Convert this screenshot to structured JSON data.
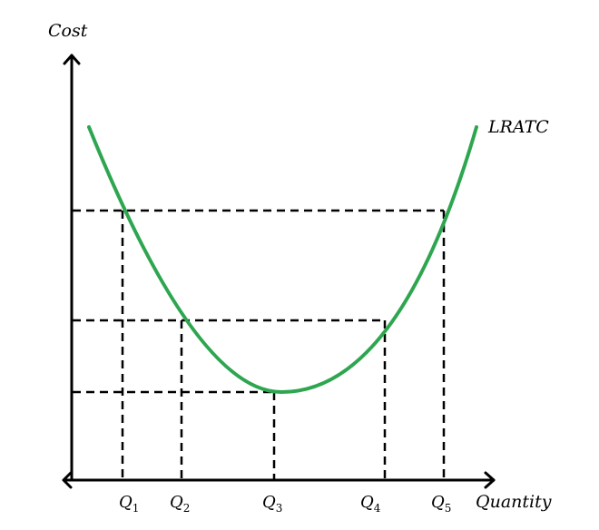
{
  "diagram": {
    "y_axis_label": "Cost",
    "x_axis_label": "Quantity",
    "curve_label": "LRATC",
    "curve_color": "#2ea650",
    "guide_color": "#000000",
    "x_ticks": [
      {
        "main": "Q",
        "sub": "1"
      },
      {
        "main": "Q",
        "sub": "2"
      },
      {
        "main": "Q",
        "sub": "3"
      },
      {
        "main": "Q",
        "sub": "4"
      },
      {
        "main": "Q",
        "sub": "5"
      }
    ]
  }
}
